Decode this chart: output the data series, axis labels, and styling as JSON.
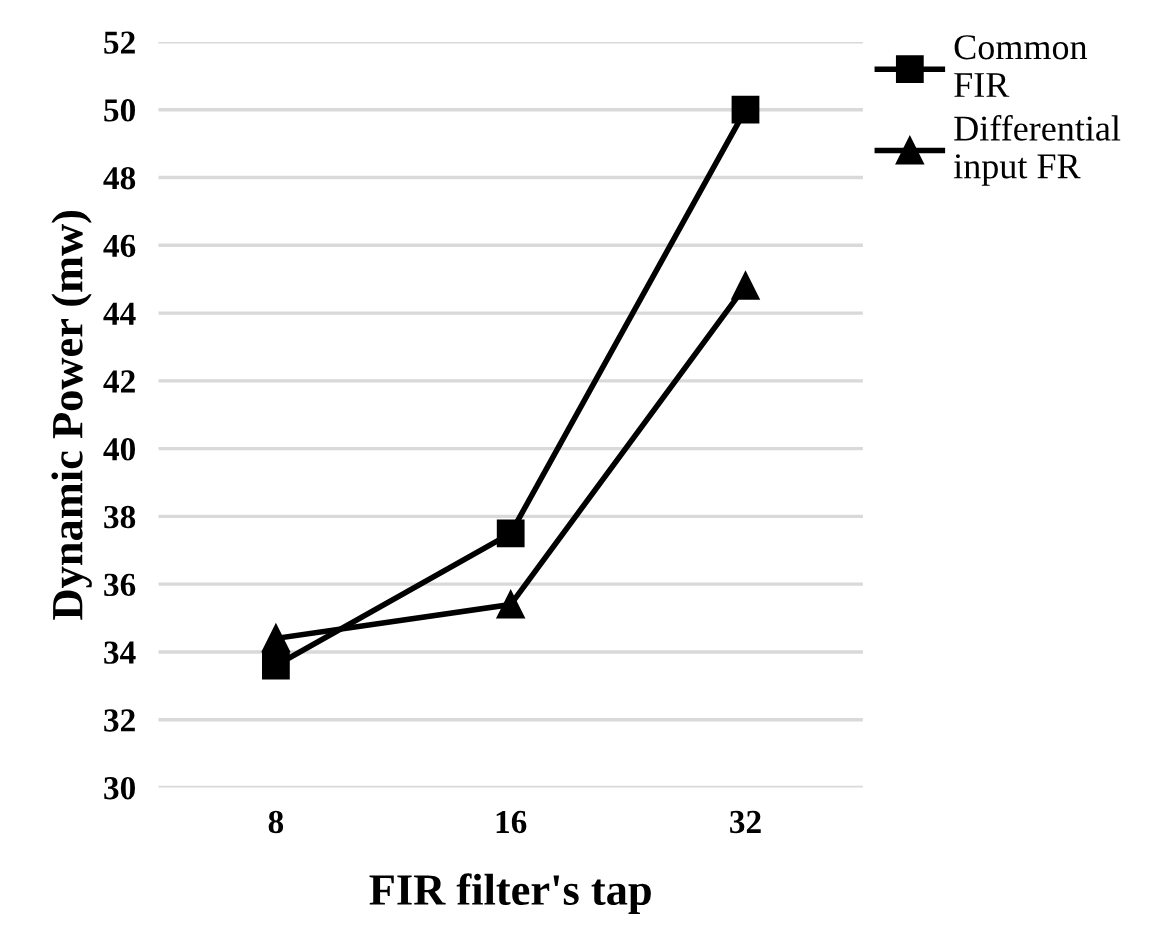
{
  "chart_data": {
    "type": "line",
    "xlabel": "FIR filter's tap",
    "ylabel": "Dynamic Power (mw)",
    "categories": [
      "8",
      "16",
      "32"
    ],
    "series": [
      {
        "name": "Common\nFIR",
        "color": "#000000",
        "marker": "square",
        "values": [
          33.6,
          37.5,
          50.0
        ]
      },
      {
        "name": "Differential\ninput FR",
        "color": "#000000",
        "marker": "triangle",
        "values": [
          34.4,
          35.4,
          44.8
        ]
      }
    ],
    "ylim": [
      30,
      52
    ],
    "yticks": [
      30,
      32,
      34,
      36,
      38,
      40,
      42,
      44,
      46,
      48,
      50,
      52
    ],
    "grid": "y",
    "legend": "top right",
    "line_style": "solid"
  }
}
